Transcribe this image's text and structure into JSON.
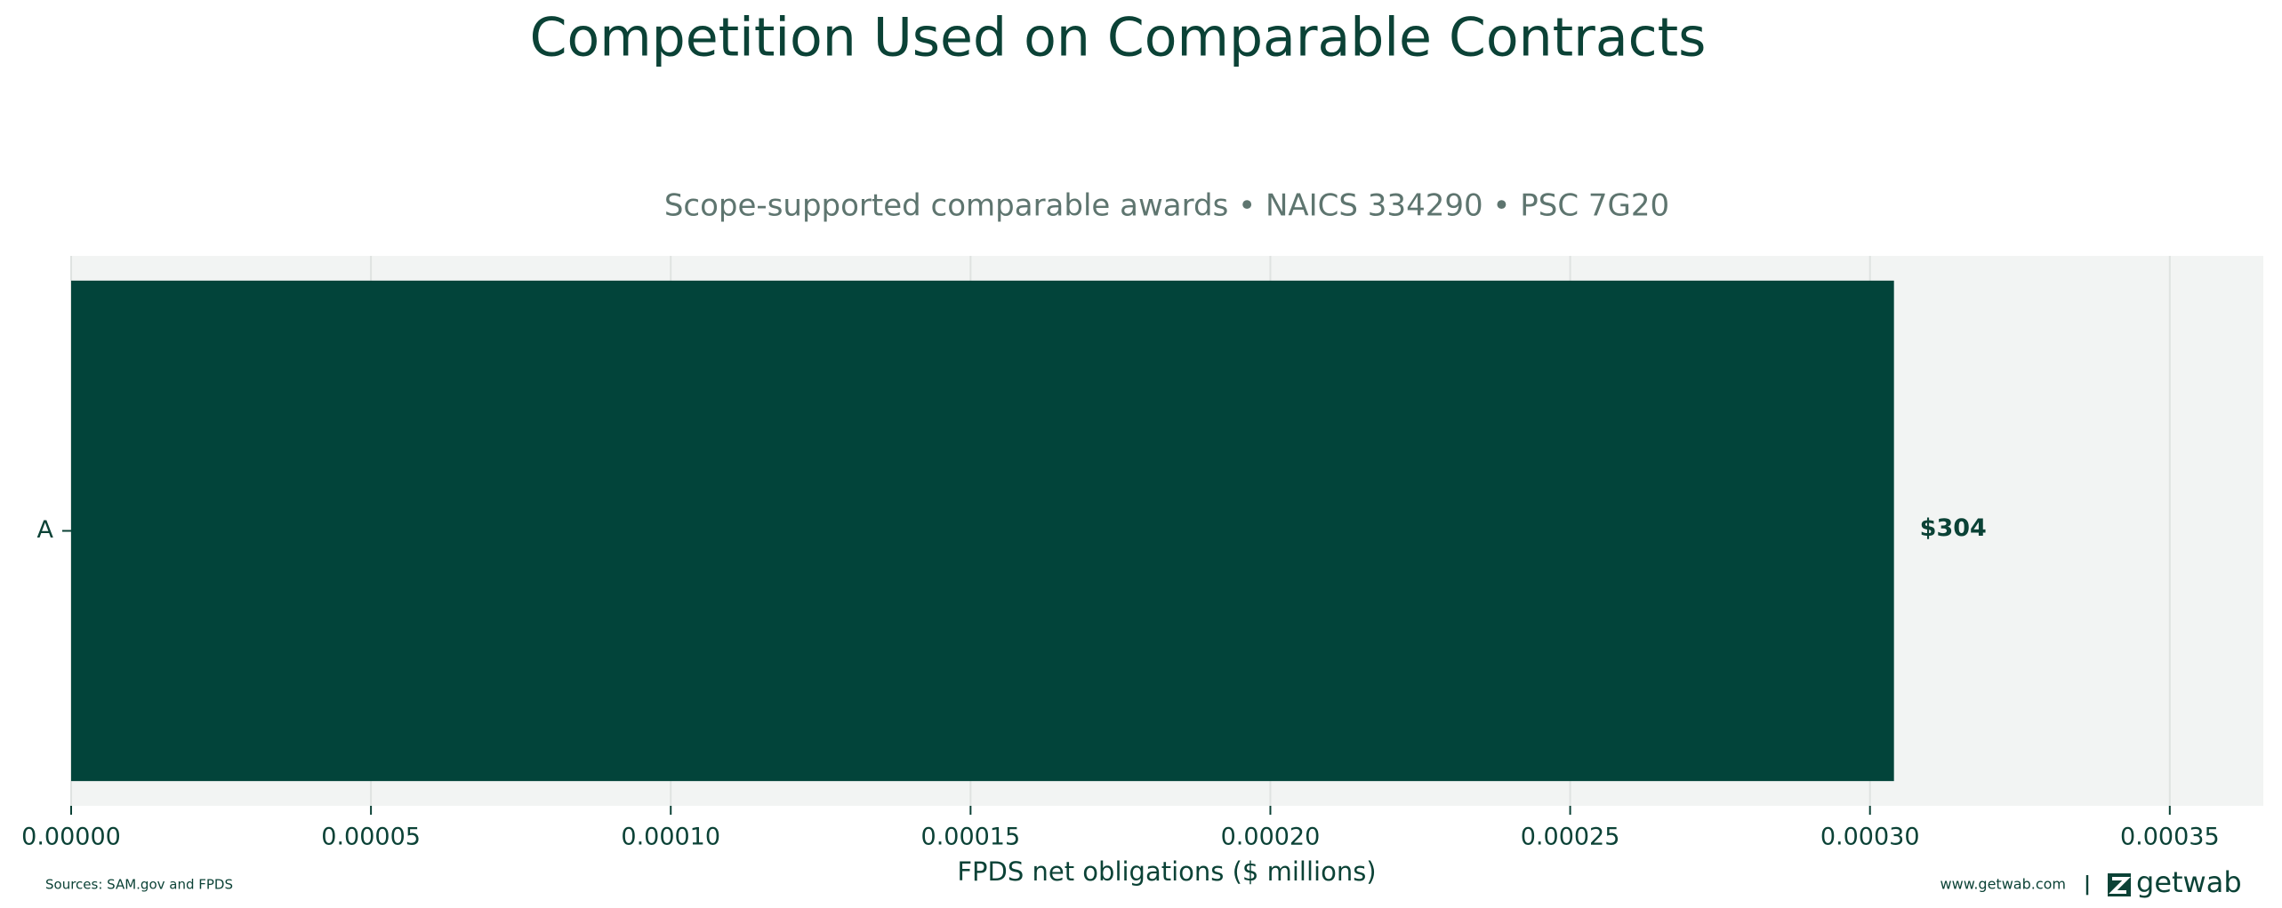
{
  "chart_data": {
    "type": "bar",
    "orientation": "horizontal",
    "title": "Competition Used on Comparable Contracts",
    "subtitle": "Scope-supported comparable awards • NAICS 334290 • PSC 7G20",
    "x_label": "FPDS net obligations ($ millions)",
    "categories": [
      "A"
    ],
    "values": [
      0.000304
    ],
    "value_labels": [
      "$304"
    ],
    "color": "#02443a",
    "xlim": [
      0,
      0.0003656
    ],
    "xticks": [
      {
        "value": 0,
        "label": "0.00000"
      },
      {
        "value": 5e-05,
        "label": "0.00005"
      },
      {
        "value": 0.0001,
        "label": "0.00010"
      },
      {
        "value": 0.00015,
        "label": "0.00015"
      },
      {
        "value": 0.0002,
        "label": "0.00020"
      },
      {
        "value": 0.00025,
        "label": "0.00025"
      },
      {
        "value": 0.0003,
        "label": "0.00030"
      },
      {
        "value": 0.00035,
        "label": "0.00035"
      }
    ],
    "grid": true,
    "source": "Sources: SAM.gov and FPDS",
    "website": "www.getwab.com",
    "brand": "getwab"
  }
}
